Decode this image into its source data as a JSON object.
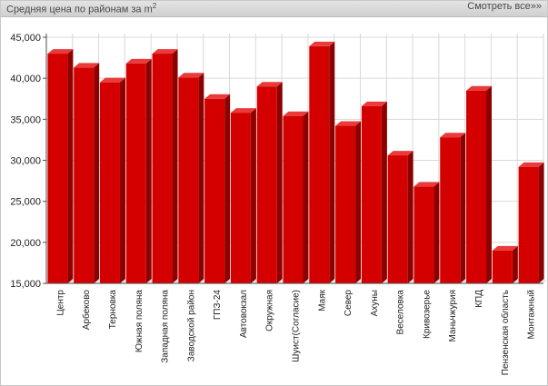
{
  "header": {
    "title": "Средняя цена по районам за m",
    "title_sup": "2",
    "more_link": "Смотреть все»»"
  },
  "colors": {
    "bar_front": "#d40000",
    "bar_side": "#8c0000",
    "bar_top": "#ea3a3a",
    "grid": "#d9d9d9",
    "axis": "#4d4d4d",
    "header_bg": "#d6d6d6"
  },
  "chart_data": {
    "type": "bar",
    "categories": [
      "Центр",
      "Арбеково",
      "Терновка",
      "Южная поляна",
      "Западная поляна",
      "Заводской район",
      "ГПЗ-24",
      "Автовокзал",
      "Окружная",
      "Шуист(Согласие)",
      "Маяк",
      "Север",
      "Ахуны",
      "Веселовка",
      "Кривозерье",
      "Маньчжурия",
      "КПД",
      "Пензенская область",
      "Монтажный"
    ],
    "values": [
      43000,
      41300,
      39500,
      41800,
      43000,
      40100,
      37500,
      35800,
      39000,
      35400,
      43900,
      34200,
      36600,
      30600,
      26800,
      32800,
      38500,
      19000,
      29200
    ],
    "ylim": [
      15000,
      45000
    ],
    "yticks": [
      "15,000",
      "20,000",
      "25,000",
      "30,000",
      "35,000",
      "40,000",
      "45,000"
    ],
    "ytick_values": [
      15000,
      20000,
      25000,
      30000,
      35000,
      40000,
      45000
    ],
    "grid": true,
    "style": "3d"
  }
}
